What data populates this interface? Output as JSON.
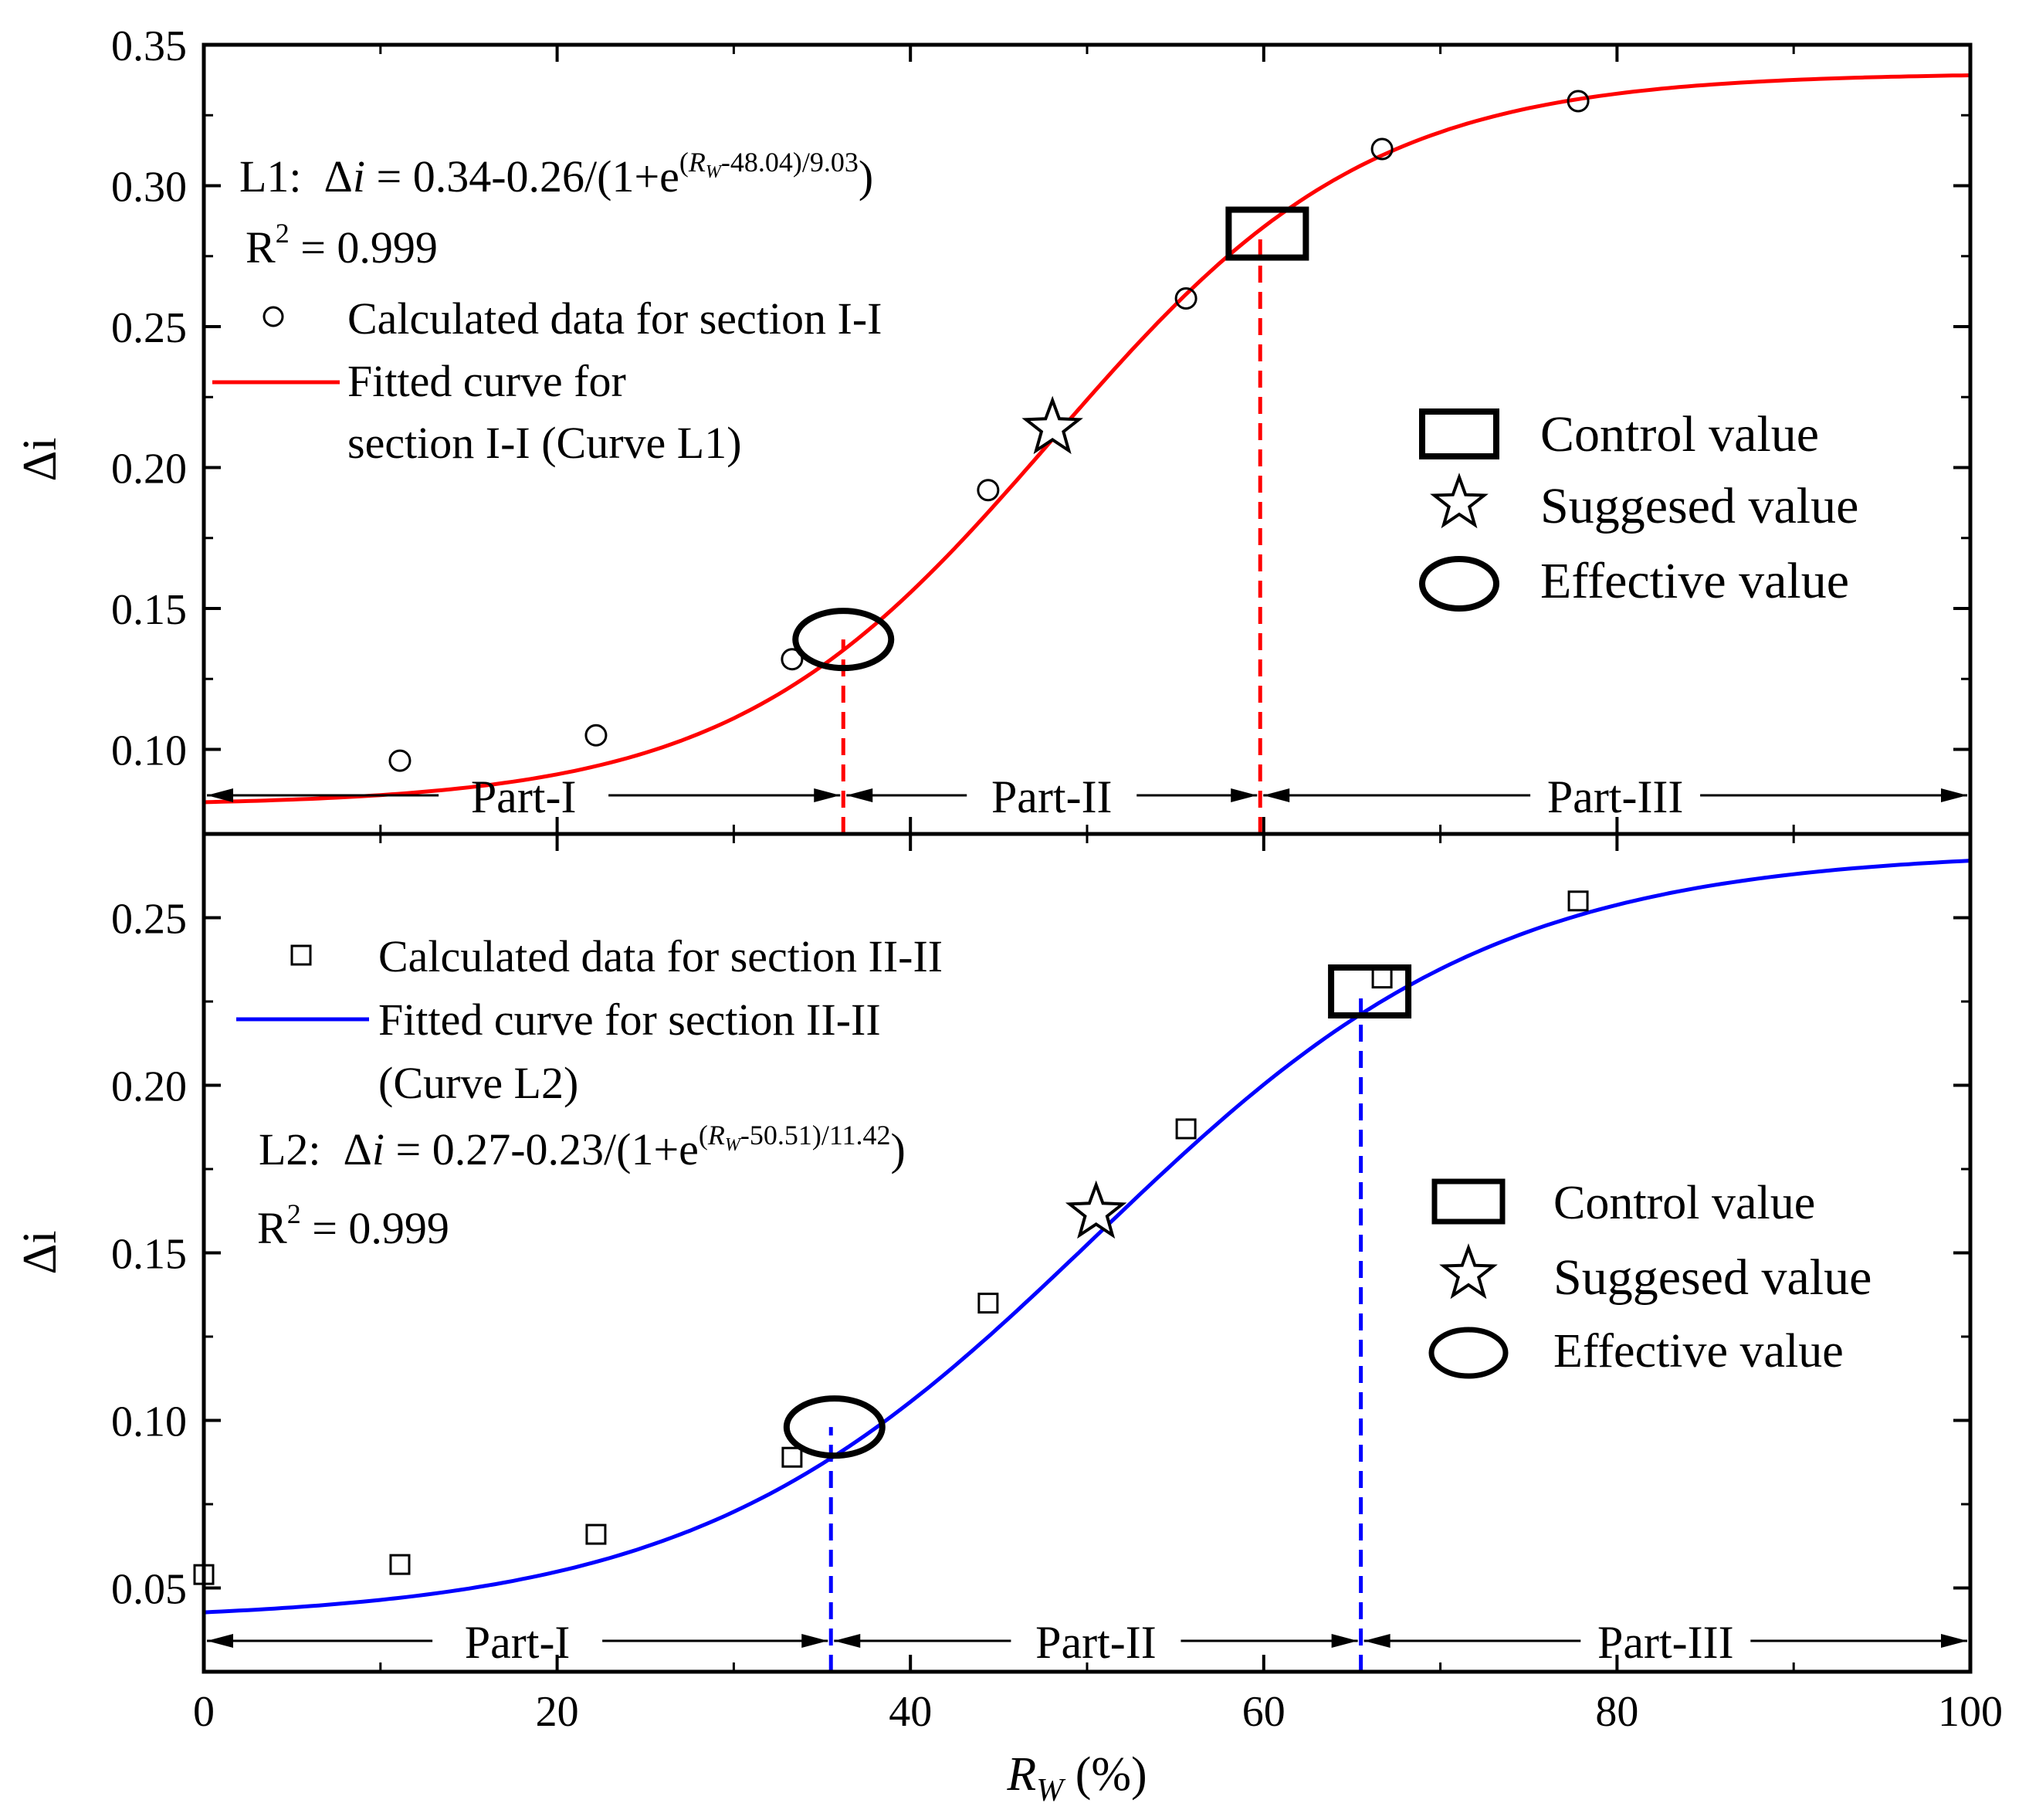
{
  "chart_data": [
    {
      "type": "line",
      "panel": "top",
      "xlim": [
        0,
        100
      ],
      "ylim": [
        0.07,
        0.35
      ],
      "ylabel": "Δi",
      "yticks": [
        "0.10",
        "0.15",
        "0.20",
        "0.25",
        "0.30",
        "0.35"
      ],
      "yticks_values": [
        0.1,
        0.15,
        0.2,
        0.25,
        0.3,
        0.35
      ],
      "equation": {
        "prefix": "L1:  ",
        "delta": "Δ",
        "var": "i",
        "mid": " = 0.34-0.26/(1+e",
        "sup_var": "R",
        "sup_sub": "W",
        "sup_rest": "-48.04)/9.03",
        "sup_open": "(",
        "close": ")"
      },
      "r2": {
        "base": "R",
        "exp": "2",
        "rest": " = 0.999"
      },
      "fit": {
        "A1": 0.34,
        "A2": 0.26,
        "x0": 48.04,
        "dx": 9.03,
        "color": "#ff0000"
      },
      "series": [
        {
          "name": "Calculated data for section I-I",
          "marker": "circle",
          "x": [
            11.1,
            22.2,
            33.3,
            44.4,
            55.6,
            66.7,
            77.8
          ],
          "y": [
            0.096,
            0.105,
            0.132,
            0.192,
            0.26,
            0.313,
            0.33
          ]
        }
      ],
      "fit_legend": [
        "Fitted curve for",
        "section I-I (Curve L1)"
      ],
      "markers": [
        {
          "label": "Control value",
          "shape": "rectangle",
          "x": 60.2,
          "y": 0.283
        },
        {
          "label": "Suggesed value",
          "shape": "star",
          "x": 48.04,
          "y": 0.214
        },
        {
          "label": "Effective value",
          "shape": "ellipse",
          "x": 36.2,
          "y": 0.139
        }
      ],
      "dashed_x": [
        36.2,
        59.8
      ],
      "dashed_color": "#ff0000",
      "parts": [
        "Part-I",
        "Part-II",
        "Part-III"
      ]
    },
    {
      "type": "line",
      "panel": "bottom",
      "xlim": [
        0,
        100
      ],
      "ylim": [
        0.025,
        0.275
      ],
      "xlabel": {
        "var": "R",
        "sub": "W",
        "rest": " (%)"
      },
      "ylabel": "Δi",
      "xticks": [
        "0",
        "20",
        "40",
        "60",
        "80",
        "100"
      ],
      "xticks_values": [
        0,
        20,
        40,
        60,
        80,
        100
      ],
      "yticks": [
        "0.05",
        "0.10",
        "0.15",
        "0.20",
        "0.25"
      ],
      "yticks_values": [
        0.05,
        0.1,
        0.15,
        0.2,
        0.25
      ],
      "equation": {
        "prefix": "L2:  ",
        "delta": "Δ",
        "var": "i",
        "mid": " = 0.27-0.23/(1+e",
        "sup_var": "R",
        "sup_sub": "W",
        "sup_rest": "-50.51)/11.42",
        "sup_open": "(",
        "close": ")"
      },
      "r2": {
        "base": "R",
        "exp": "2",
        "rest": " = 0.999"
      },
      "fit": {
        "A1": 0.27,
        "A2": 0.23,
        "x0": 50.51,
        "dx": 11.42,
        "color": "#0000ff"
      },
      "series": [
        {
          "name": "Calculated data for section II-II",
          "marker": "square",
          "x": [
            0,
            11.1,
            22.2,
            33.3,
            44.4,
            55.6,
            66.7,
            77.8
          ],
          "y": [
            0.054,
            0.057,
            0.066,
            0.089,
            0.135,
            0.187,
            0.232,
            0.255
          ]
        }
      ],
      "fit_legend": [
        "Fitted curve for section II-II",
        "(Curve L2)"
      ],
      "markers": [
        {
          "label": "Control value",
          "shape": "rectangle",
          "x": 66.0,
          "y": 0.228
        },
        {
          "label": "Suggesed value",
          "shape": "star",
          "x": 50.51,
          "y": 0.162
        },
        {
          "label": "Effective value",
          "shape": "ellipse",
          "x": 35.7,
          "y": 0.098
        }
      ],
      "dashed_x": [
        35.5,
        65.5
      ],
      "dashed_color": "#0000ff",
      "parts": [
        "Part-I",
        "Part-II",
        "Part-III"
      ]
    }
  ]
}
